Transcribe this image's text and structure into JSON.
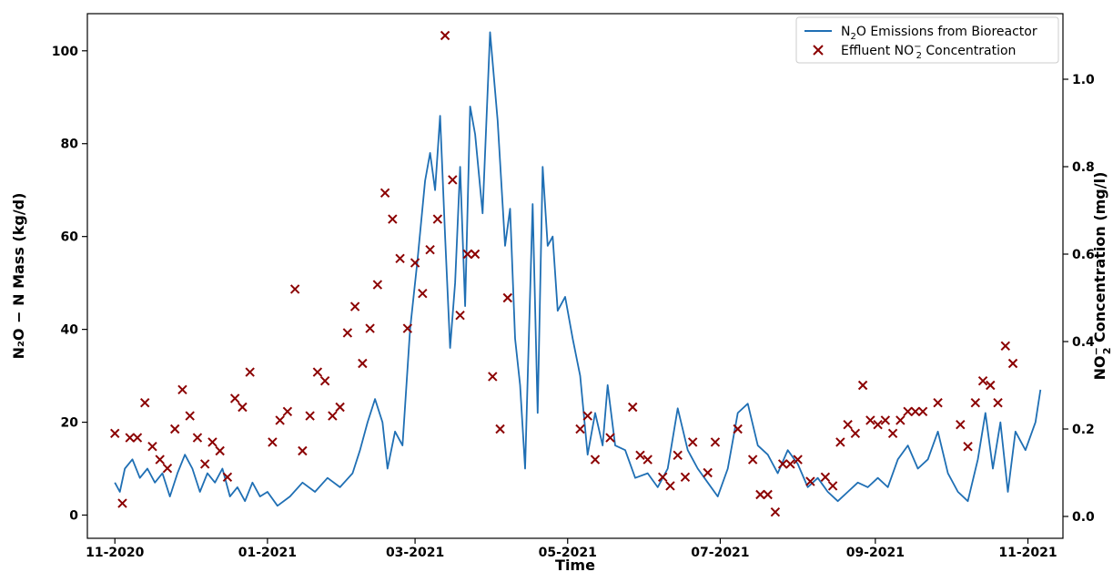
{
  "chart_data": {
    "type": "line",
    "xlabel": "Time",
    "ylabel_left": "N₂O − N Mass (kg/d)",
    "ylabel_right_prefix": "NO",
    "ylabel_right_sub": "2",
    "ylabel_right_sup": "−",
    "ylabel_right_suffix": " Concentration (mg/l)",
    "x_ticks": [
      "11-2020",
      "01-2021",
      "03-2021",
      "05-2021",
      "07-2021",
      "09-2021",
      "11-2021"
    ],
    "x_range": [
      "2020-10-21",
      "2021-11-15"
    ],
    "y_left_range": [
      -5,
      108
    ],
    "y_left_ticks": [
      "0",
      "20",
      "40",
      "60",
      "80",
      "100"
    ],
    "y_right_range": [
      -0.05,
      1.15
    ],
    "y_right_ticks": [
      "0.0",
      "0.2",
      "0.4",
      "0.6",
      "0.8",
      "1.0"
    ],
    "legend_position": "top-right",
    "legend": {
      "line_label_pre": "N",
      "line_label_sub": "2",
      "line_label_post": "O Emissions from Bioreactor",
      "marker_label_pre": "Effluent NO",
      "marker_label_sub": "2",
      "marker_label_sup": "−",
      "marker_label_post": " Concentration"
    },
    "colors": {
      "line": "#1f6fb4",
      "marker": "#8b0000"
    },
    "series": [
      {
        "name": "N₂O Emissions from Bioreactor",
        "axis": "left",
        "style": "line",
        "points": [
          [
            "2020-11-01",
            7
          ],
          [
            "2020-11-03",
            5
          ],
          [
            "2020-11-05",
            10
          ],
          [
            "2020-11-08",
            12
          ],
          [
            "2020-11-11",
            8
          ],
          [
            "2020-11-14",
            10
          ],
          [
            "2020-11-17",
            7
          ],
          [
            "2020-11-20",
            9
          ],
          [
            "2020-11-23",
            4
          ],
          [
            "2020-11-26",
            9
          ],
          [
            "2020-11-29",
            13
          ],
          [
            "2020-12-02",
            10
          ],
          [
            "2020-12-05",
            5
          ],
          [
            "2020-12-08",
            9
          ],
          [
            "2020-12-11",
            7
          ],
          [
            "2020-12-14",
            10
          ],
          [
            "2020-12-17",
            4
          ],
          [
            "2020-12-20",
            6
          ],
          [
            "2020-12-23",
            3
          ],
          [
            "2020-12-26",
            7
          ],
          [
            "2020-12-29",
            4
          ],
          [
            "2021-01-01",
            5
          ],
          [
            "2021-01-05",
            2
          ],
          [
            "2021-01-10",
            4
          ],
          [
            "2021-01-15",
            7
          ],
          [
            "2021-01-20",
            5
          ],
          [
            "2021-01-25",
            8
          ],
          [
            "2021-01-30",
            6
          ],
          [
            "2021-02-04",
            9
          ],
          [
            "2021-02-07",
            14
          ],
          [
            "2021-02-10",
            20
          ],
          [
            "2021-02-13",
            25
          ],
          [
            "2021-02-16",
            20
          ],
          [
            "2021-02-18",
            10
          ],
          [
            "2021-02-21",
            18
          ],
          [
            "2021-02-24",
            15
          ],
          [
            "2021-02-27",
            40
          ],
          [
            "2021-03-02",
            55
          ],
          [
            "2021-03-05",
            72
          ],
          [
            "2021-03-07",
            78
          ],
          [
            "2021-03-09",
            70
          ],
          [
            "2021-03-11",
            86
          ],
          [
            "2021-03-13",
            60
          ],
          [
            "2021-03-15",
            36
          ],
          [
            "2021-03-17",
            50
          ],
          [
            "2021-03-19",
            75
          ],
          [
            "2021-03-21",
            45
          ],
          [
            "2021-03-23",
            88
          ],
          [
            "2021-03-25",
            82
          ],
          [
            "2021-03-28",
            65
          ],
          [
            "2021-03-31",
            104
          ],
          [
            "2021-04-03",
            85
          ],
          [
            "2021-04-06",
            58
          ],
          [
            "2021-04-08",
            66
          ],
          [
            "2021-04-10",
            38
          ],
          [
            "2021-04-12",
            28
          ],
          [
            "2021-04-14",
            10
          ],
          [
            "2021-04-17",
            67
          ],
          [
            "2021-04-19",
            22
          ],
          [
            "2021-04-21",
            75
          ],
          [
            "2021-04-23",
            58
          ],
          [
            "2021-04-25",
            60
          ],
          [
            "2021-04-27",
            44
          ],
          [
            "2021-04-30",
            47
          ],
          [
            "2021-05-03",
            38
          ],
          [
            "2021-05-06",
            30
          ],
          [
            "2021-05-09",
            13
          ],
          [
            "2021-05-12",
            22
          ],
          [
            "2021-05-15",
            15
          ],
          [
            "2021-05-17",
            28
          ],
          [
            "2021-05-20",
            15
          ],
          [
            "2021-05-24",
            14
          ],
          [
            "2021-05-28",
            8
          ],
          [
            "2021-06-02",
            9
          ],
          [
            "2021-06-06",
            6
          ],
          [
            "2021-06-10",
            10
          ],
          [
            "2021-06-14",
            23
          ],
          [
            "2021-06-18",
            14
          ],
          [
            "2021-06-22",
            10
          ],
          [
            "2021-06-26",
            7
          ],
          [
            "2021-06-30",
            4
          ],
          [
            "2021-07-04",
            10
          ],
          [
            "2021-07-08",
            22
          ],
          [
            "2021-07-12",
            24
          ],
          [
            "2021-07-16",
            15
          ],
          [
            "2021-07-20",
            13
          ],
          [
            "2021-07-24",
            9
          ],
          [
            "2021-07-28",
            14
          ],
          [
            "2021-08-01",
            11
          ],
          [
            "2021-08-05",
            6
          ],
          [
            "2021-08-09",
            8
          ],
          [
            "2021-08-13",
            5
          ],
          [
            "2021-08-17",
            3
          ],
          [
            "2021-08-21",
            5
          ],
          [
            "2021-08-25",
            7
          ],
          [
            "2021-08-29",
            6
          ],
          [
            "2021-09-02",
            8
          ],
          [
            "2021-09-06",
            6
          ],
          [
            "2021-09-10",
            12
          ],
          [
            "2021-09-14",
            15
          ],
          [
            "2021-09-18",
            10
          ],
          [
            "2021-09-22",
            12
          ],
          [
            "2021-09-26",
            18
          ],
          [
            "2021-09-30",
            9
          ],
          [
            "2021-10-04",
            5
          ],
          [
            "2021-10-08",
            3
          ],
          [
            "2021-10-12",
            12
          ],
          [
            "2021-10-15",
            22
          ],
          [
            "2021-10-18",
            10
          ],
          [
            "2021-10-21",
            20
          ],
          [
            "2021-10-24",
            5
          ],
          [
            "2021-10-27",
            18
          ],
          [
            "2021-10-31",
            14
          ],
          [
            "2021-11-04",
            20
          ],
          [
            "2021-11-06",
            27
          ]
        ]
      },
      {
        "name": "Effluent NO₂⁻ Concentration",
        "axis": "right",
        "style": "x-marker",
        "points": [
          [
            "2020-11-01",
            0.19
          ],
          [
            "2020-11-04",
            0.03
          ],
          [
            "2020-11-07",
            0.18
          ],
          [
            "2020-11-10",
            0.18
          ],
          [
            "2020-11-13",
            0.26
          ],
          [
            "2020-11-16",
            0.16
          ],
          [
            "2020-11-19",
            0.13
          ],
          [
            "2020-11-22",
            0.11
          ],
          [
            "2020-11-25",
            0.2
          ],
          [
            "2020-11-28",
            0.29
          ],
          [
            "2020-12-01",
            0.23
          ],
          [
            "2020-12-04",
            0.18
          ],
          [
            "2020-12-07",
            0.12
          ],
          [
            "2020-12-10",
            0.17
          ],
          [
            "2020-12-13",
            0.15
          ],
          [
            "2020-12-16",
            0.09
          ],
          [
            "2020-12-19",
            0.27
          ],
          [
            "2020-12-22",
            0.25
          ],
          [
            "2020-12-25",
            0.33
          ],
          [
            "2021-01-03",
            0.17
          ],
          [
            "2021-01-06",
            0.22
          ],
          [
            "2021-01-09",
            0.24
          ],
          [
            "2021-01-12",
            0.52
          ],
          [
            "2021-01-15",
            0.15
          ],
          [
            "2021-01-18",
            0.23
          ],
          [
            "2021-01-21",
            0.33
          ],
          [
            "2021-01-24",
            0.31
          ],
          [
            "2021-01-27",
            0.23
          ],
          [
            "2021-01-30",
            0.25
          ],
          [
            "2021-02-02",
            0.42
          ],
          [
            "2021-02-05",
            0.48
          ],
          [
            "2021-02-08",
            0.35
          ],
          [
            "2021-02-11",
            0.43
          ],
          [
            "2021-02-14",
            0.53
          ],
          [
            "2021-02-17",
            0.74
          ],
          [
            "2021-02-20",
            0.68
          ],
          [
            "2021-02-23",
            0.59
          ],
          [
            "2021-02-26",
            0.43
          ],
          [
            "2021-03-01",
            0.58
          ],
          [
            "2021-03-04",
            0.51
          ],
          [
            "2021-03-07",
            0.61
          ],
          [
            "2021-03-10",
            0.68
          ],
          [
            "2021-03-13",
            1.1
          ],
          [
            "2021-03-16",
            0.77
          ],
          [
            "2021-03-19",
            0.46
          ],
          [
            "2021-03-22",
            0.6
          ],
          [
            "2021-03-25",
            0.6
          ],
          [
            "2021-04-01",
            0.32
          ],
          [
            "2021-04-04",
            0.2
          ],
          [
            "2021-04-07",
            0.5
          ],
          [
            "2021-05-06",
            0.2
          ],
          [
            "2021-05-09",
            0.23
          ],
          [
            "2021-05-12",
            0.13
          ],
          [
            "2021-05-18",
            0.18
          ],
          [
            "2021-05-27",
            0.25
          ],
          [
            "2021-05-30",
            0.14
          ],
          [
            "2021-06-02",
            0.13
          ],
          [
            "2021-06-08",
            0.09
          ],
          [
            "2021-06-11",
            0.07
          ],
          [
            "2021-06-14",
            0.14
          ],
          [
            "2021-06-17",
            0.09
          ],
          [
            "2021-06-20",
            0.17
          ],
          [
            "2021-06-26",
            0.1
          ],
          [
            "2021-06-29",
            0.17
          ],
          [
            "2021-07-08",
            0.2
          ],
          [
            "2021-07-14",
            0.13
          ],
          [
            "2021-07-17",
            0.05
          ],
          [
            "2021-07-20",
            0.05
          ],
          [
            "2021-07-23",
            0.01
          ],
          [
            "2021-07-26",
            0.12
          ],
          [
            "2021-07-29",
            0.12
          ],
          [
            "2021-08-01",
            0.13
          ],
          [
            "2021-08-06",
            0.08
          ],
          [
            "2021-08-12",
            0.09
          ],
          [
            "2021-08-15",
            0.07
          ],
          [
            "2021-08-18",
            0.17
          ],
          [
            "2021-08-21",
            0.21
          ],
          [
            "2021-08-24",
            0.19
          ],
          [
            "2021-08-27",
            0.3
          ],
          [
            "2021-08-30",
            0.22
          ],
          [
            "2021-09-02",
            0.21
          ],
          [
            "2021-09-05",
            0.22
          ],
          [
            "2021-09-08",
            0.19
          ],
          [
            "2021-09-11",
            0.22
          ],
          [
            "2021-09-14",
            0.24
          ],
          [
            "2021-09-17",
            0.24
          ],
          [
            "2021-09-20",
            0.24
          ],
          [
            "2021-09-26",
            0.26
          ],
          [
            "2021-10-05",
            0.21
          ],
          [
            "2021-10-08",
            0.16
          ],
          [
            "2021-10-11",
            0.26
          ],
          [
            "2021-10-14",
            0.31
          ],
          [
            "2021-10-17",
            0.3
          ],
          [
            "2021-10-20",
            0.26
          ],
          [
            "2021-10-23",
            0.39
          ],
          [
            "2021-10-26",
            0.35
          ]
        ]
      }
    ]
  }
}
